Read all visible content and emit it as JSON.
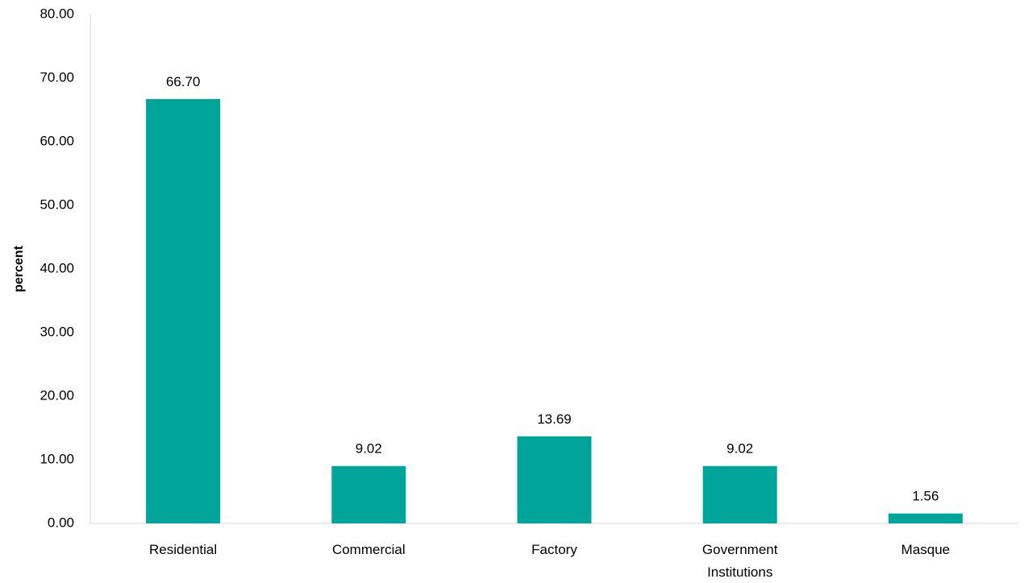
{
  "chart_data": {
    "type": "bar",
    "categories": [
      [
        "Residential"
      ],
      [
        "Commercial"
      ],
      [
        "Factory"
      ],
      [
        "Government",
        "Institutions"
      ],
      [
        "Masque"
      ]
    ],
    "values": [
      66.7,
      9.02,
      13.69,
      9.02,
      1.56
    ],
    "data_labels": [
      "66.70",
      "9.02",
      "13.69",
      "9.02",
      "1.56"
    ],
    "title": "",
    "xlabel": "",
    "ylabel": "percent",
    "ylim": [
      0,
      80
    ],
    "yticks": [
      0,
      10,
      20,
      30,
      40,
      50,
      60,
      70,
      80
    ],
    "ytick_labels": [
      "0.00",
      "10.00",
      "20.00",
      "30.00",
      "40.00",
      "50.00",
      "60.00",
      "70.00",
      "80.00"
    ],
    "bar_color": "#00a499",
    "grid": false,
    "legend": "none"
  }
}
